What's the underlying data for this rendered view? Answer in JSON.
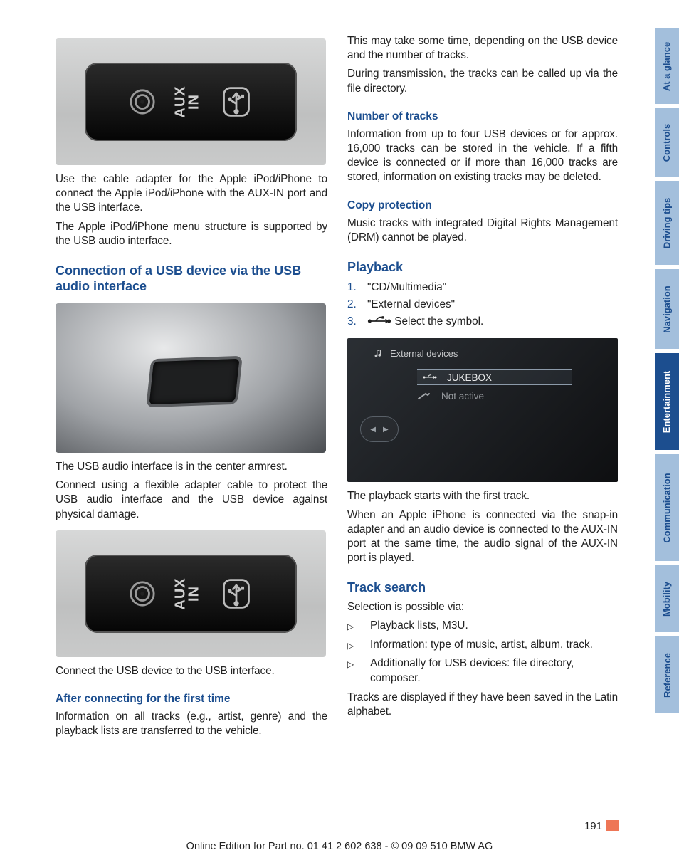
{
  "left": {
    "p1": "Use the cable adapter for the Apple iPod/iPhone to connect the Apple iPod/iPhone with the AUX-IN port and the USB interface.",
    "p2": "The Apple iPod/iPhone menu structure is supported by the USB audio interface.",
    "h2a": "Connection of a USB device via the USB audio interface",
    "p3": "The USB audio interface is in the center armrest.",
    "p4": "Connect using a flexible adapter cable to protect the USB audio interface and the USB device against physical damage.",
    "p5": "Connect the USB device to the USB interface.",
    "h3a": "After connecting for the first time",
    "p6": "Information on all tracks (e.g., artist, genre) and the playback lists are transferred to the vehicle."
  },
  "right": {
    "p1": "This may take some time, depending on the USB device and the number of tracks.",
    "p2": "During transmission, the tracks can be called up via the file directory.",
    "h3a": "Number of tracks",
    "p3": "Information from up to four USB devices or for approx. 16,000 tracks can be stored in the vehicle. If a fifth device is connected or if more than 16,000 tracks are stored, information on existing tracks may be deleted.",
    "h3b": "Copy protection",
    "p4": "Music tracks with integrated Digital Rights Management (DRM) cannot be played.",
    "h2a": "Playback",
    "ol": [
      "\"CD/Multimedia\"",
      "\"External devices\"",
      " Select the symbol."
    ],
    "idrive": {
      "header": "External devices",
      "row1": "JUKEBOX",
      "row2": "Not active"
    },
    "p5": "The playback starts with the first track.",
    "p6": "When an Apple iPhone is connected via the snap-in adapter and an audio device is connected to the AUX-IN port at the same time, the audio signal of the AUX-IN port is played.",
    "h2b": "Track search",
    "p7": "Selection is possible via:",
    "ul": [
      "Playback lists, M3U.",
      "Information: type of music, artist, album, track.",
      "Additionally for USB devices: file directory, composer."
    ],
    "p8": "Tracks are displayed if they have been saved in the Latin alphabet."
  },
  "tabs": [
    {
      "label": "At a glance",
      "h": 106,
      "active": false
    },
    {
      "label": "Controls",
      "h": 96,
      "active": false
    },
    {
      "label": "Driving tips",
      "h": 118,
      "active": false
    },
    {
      "label": "Navigation",
      "h": 112,
      "active": false
    },
    {
      "label": "Entertainment",
      "h": 136,
      "active": true
    },
    {
      "label": "Communication",
      "h": 150,
      "active": false
    },
    {
      "label": "Mobility",
      "h": 94,
      "active": false
    },
    {
      "label": "Reference",
      "h": 108,
      "active": false
    }
  ],
  "footer": {
    "pagenum": "191",
    "line": "Online Edition for Part no. 01 41 2 602 638 - © 09 09 510 BMW AG"
  },
  "aux": {
    "label_top": "AUX",
    "label_bottom": "IN"
  },
  "colors": {
    "heading": "#1c4e8f",
    "tab_bg": "#a3bfdc",
    "tab_active_bg": "#1c4e8f",
    "page_bar": "#ee7656"
  }
}
